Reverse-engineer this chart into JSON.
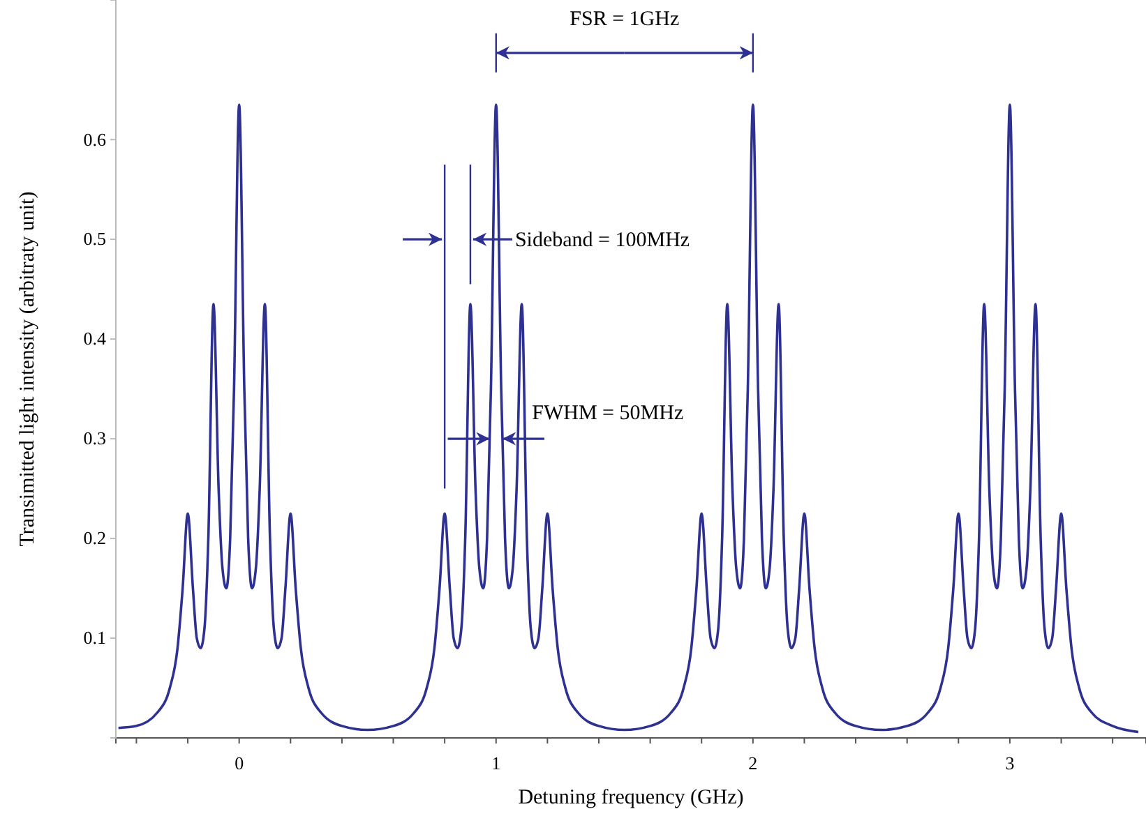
{
  "chart_data": {
    "type": "line",
    "xlabel": "Detuning frequency (GHz)",
    "ylabel": "Transimitted light intensity (arbitraty unit)",
    "xlim": [
      -0.48,
      3.53
    ],
    "ylim": [
      0,
      0.74
    ],
    "xticks": [
      {
        "value": -0.4,
        "label": null
      },
      {
        "value": -0.2,
        "label": null
      },
      0,
      {
        "value": 0.2,
        "label": null
      },
      {
        "value": 0.4,
        "label": null
      },
      {
        "value": 0.6,
        "label": null
      },
      {
        "value": 0.8,
        "label": null
      },
      1,
      {
        "value": 1.2,
        "label": null
      },
      {
        "value": 1.4,
        "label": null
      },
      {
        "value": 1.6,
        "label": null
      },
      {
        "value": 1.8,
        "label": null
      },
      2,
      {
        "value": 2.2,
        "label": null
      },
      {
        "value": 2.4,
        "label": null
      },
      {
        "value": 2.6,
        "label": null
      },
      {
        "value": 2.8,
        "label": null
      },
      3,
      {
        "value": 3.2,
        "label": null
      },
      {
        "value": 3.4,
        "label": null
      }
    ],
    "yticks": [
      0.1,
      0.2,
      0.3,
      0.4,
      0.5,
      0.6
    ],
    "grid": false,
    "marker": "none",
    "line_style": "solid",
    "series": [
      {
        "color": "#2e3192",
        "x": [
          -0.47,
          -0.4,
          -0.32,
          -0.27,
          -0.24,
          -0.22,
          -0.2,
          -0.18,
          -0.165,
          -0.15,
          -0.135,
          -0.12,
          -0.1,
          -0.08,
          -0.065,
          -0.05,
          -0.035,
          -0.02,
          0,
          0.02,
          0.035,
          0.05,
          0.065,
          0.08,
          0.1,
          0.12,
          0.135,
          0.15,
          0.165,
          0.18,
          0.2,
          0.22,
          0.24,
          0.27,
          0.32,
          0.4,
          0.5,
          0.6,
          0.68,
          0.73,
          0.76,
          0.78,
          0.8,
          0.82,
          0.835,
          0.85,
          0.865,
          0.88,
          0.9,
          0.92,
          0.935,
          0.95,
          0.965,
          0.98,
          1,
          1.02,
          1.035,
          1.05,
          1.065,
          1.08,
          1.1,
          1.12,
          1.135,
          1.15,
          1.165,
          1.18,
          1.2,
          1.22,
          1.24,
          1.27,
          1.32,
          1.4,
          1.5,
          1.6,
          1.68,
          1.73,
          1.76,
          1.78,
          1.8,
          1.82,
          1.835,
          1.85,
          1.865,
          1.88,
          1.9,
          1.92,
          1.935,
          1.95,
          1.965,
          1.98,
          2,
          2.02,
          2.035,
          2.05,
          2.065,
          2.08,
          2.1,
          2.12,
          2.135,
          2.15,
          2.165,
          2.18,
          2.2,
          2.22,
          2.24,
          2.27,
          2.32,
          2.4,
          2.5,
          2.6,
          2.68,
          2.73,
          2.76,
          2.78,
          2.8,
          2.82,
          2.835,
          2.85,
          2.865,
          2.88,
          2.9,
          2.92,
          2.935,
          2.95,
          2.965,
          2.98,
          3,
          3.02,
          3.035,
          3.05,
          3.065,
          3.08,
          3.1,
          3.12,
          3.135,
          3.15,
          3.165,
          3.18,
          3.2,
          3.22,
          3.24,
          3.27,
          3.32,
          3.4,
          3.5
        ],
        "values": [
          0.01,
          0.012,
          0.025,
          0.05,
          0.09,
          0.15,
          0.225,
          0.15,
          0.1,
          0.09,
          0.11,
          0.2,
          0.435,
          0.25,
          0.17,
          0.15,
          0.2,
          0.35,
          0.635,
          0.35,
          0.2,
          0.15,
          0.17,
          0.25,
          0.435,
          0.2,
          0.11,
          0.09,
          0.1,
          0.15,
          0.225,
          0.15,
          0.09,
          0.05,
          0.025,
          0.012,
          0.008,
          0.012,
          0.025,
          0.05,
          0.09,
          0.15,
          0.225,
          0.15,
          0.1,
          0.09,
          0.11,
          0.2,
          0.435,
          0.25,
          0.17,
          0.15,
          0.2,
          0.35,
          0.635,
          0.35,
          0.2,
          0.15,
          0.17,
          0.25,
          0.435,
          0.2,
          0.11,
          0.09,
          0.1,
          0.15,
          0.225,
          0.15,
          0.09,
          0.05,
          0.025,
          0.012,
          0.008,
          0.012,
          0.025,
          0.05,
          0.09,
          0.15,
          0.225,
          0.15,
          0.1,
          0.09,
          0.11,
          0.2,
          0.435,
          0.25,
          0.17,
          0.15,
          0.2,
          0.35,
          0.635,
          0.35,
          0.2,
          0.15,
          0.17,
          0.25,
          0.435,
          0.2,
          0.11,
          0.09,
          0.1,
          0.15,
          0.225,
          0.15,
          0.09,
          0.05,
          0.025,
          0.012,
          0.008,
          0.012,
          0.025,
          0.05,
          0.09,
          0.15,
          0.225,
          0.15,
          0.1,
          0.09,
          0.11,
          0.2,
          0.435,
          0.25,
          0.17,
          0.15,
          0.2,
          0.35,
          0.635,
          0.35,
          0.2,
          0.15,
          0.17,
          0.25,
          0.435,
          0.2,
          0.11,
          0.09,
          0.1,
          0.15,
          0.225,
          0.15,
          0.09,
          0.05,
          0.025,
          0.012,
          0.006
        ]
      }
    ],
    "annotations": [
      "FSR = 1GHz",
      "Sideband = 100MHz",
      {
        "text": "FWHM = 50MHz",
        "x": 1,
        "y": 0.3
      }
    ]
  }
}
